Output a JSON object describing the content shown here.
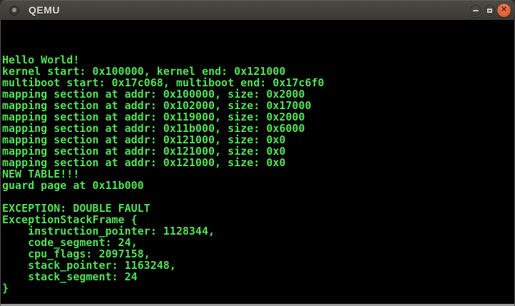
{
  "window": {
    "title": "QEMU",
    "controls": {
      "close_glyph": "✕"
    }
  },
  "colors": {
    "terminal_green": "#54e257",
    "terminal_bg": "#000000",
    "titlebar_bg": "#44433e",
    "close_button_orange": "#e2603a"
  },
  "terminal": {
    "lines": [
      "",
      "",
      "",
      "Hello World!",
      "kernel start: 0x100000, kernel end: 0x121000",
      "multiboot start: 0x17c068, multiboot end: 0x17c6f0",
      "mapping section at addr: 0x100000, size: 0x2000",
      "mapping section at addr: 0x102000, size: 0x17000",
      "mapping section at addr: 0x119000, size: 0x2000",
      "mapping section at addr: 0x11b000, size: 0x6000",
      "mapping section at addr: 0x121000, size: 0x0",
      "mapping section at addr: 0x121000, size: 0x0",
      "mapping section at addr: 0x121000, size: 0x0",
      "NEW TABLE!!!",
      "guard page at 0x11b000",
      "",
      "EXCEPTION: DOUBLE FAULT",
      "ExceptionStackFrame {",
      "    instruction_pointer: 1128344,",
      "    code_segment: 24,",
      "    cpu_flags: 2097158,",
      "    stack_pointer: 1163248,",
      "    stack_segment: 24",
      "}",
      ""
    ]
  }
}
